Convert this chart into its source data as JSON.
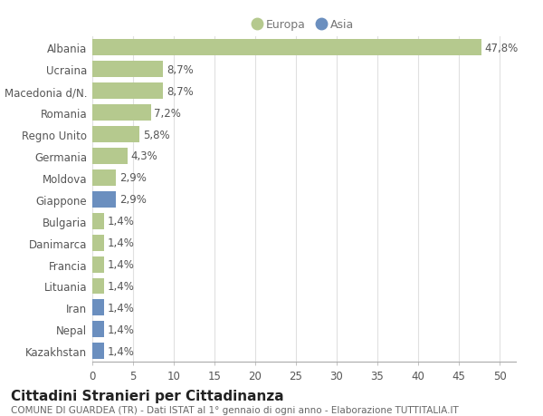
{
  "categories": [
    "Albania",
    "Ucraina",
    "Macedonia d/N.",
    "Romania",
    "Regno Unito",
    "Germania",
    "Moldova",
    "Giappone",
    "Bulgaria",
    "Danimarca",
    "Francia",
    "Lituania",
    "Iran",
    "Nepal",
    "Kazakhstan"
  ],
  "values": [
    47.8,
    8.7,
    8.7,
    7.2,
    5.8,
    4.3,
    2.9,
    2.9,
    1.4,
    1.4,
    1.4,
    1.4,
    1.4,
    1.4,
    1.4
  ],
  "labels": [
    "47,8%",
    "8,7%",
    "8,7%",
    "7,2%",
    "5,8%",
    "4,3%",
    "2,9%",
    "2,9%",
    "1,4%",
    "1,4%",
    "1,4%",
    "1,4%",
    "1,4%",
    "1,4%",
    "1,4%"
  ],
  "colors": [
    "#b5c98e",
    "#b5c98e",
    "#b5c98e",
    "#b5c98e",
    "#b5c98e",
    "#b5c98e",
    "#b5c98e",
    "#6b8fbf",
    "#b5c98e",
    "#b5c98e",
    "#b5c98e",
    "#b5c98e",
    "#6b8fbf",
    "#6b8fbf",
    "#6b8fbf"
  ],
  "europa_color": "#b5c98e",
  "asia_color": "#6b8fbf",
  "xlim": [
    0,
    52
  ],
  "xticks": [
    0,
    5,
    10,
    15,
    20,
    25,
    30,
    35,
    40,
    45,
    50
  ],
  "title": "Cittadini Stranieri per Cittadinanza",
  "subtitle": "COMUNE DI GUARDEA (TR) - Dati ISTAT al 1° gennaio di ogni anno - Elaborazione TUTTITALIA.IT",
  "background_color": "#ffffff",
  "grid_color": "#e0e0e0",
  "legend_europa": "Europa",
  "legend_asia": "Asia",
  "bar_height": 0.75,
  "label_fontsize": 8.5,
  "tick_fontsize": 8.5,
  "title_fontsize": 11,
  "subtitle_fontsize": 7.5
}
